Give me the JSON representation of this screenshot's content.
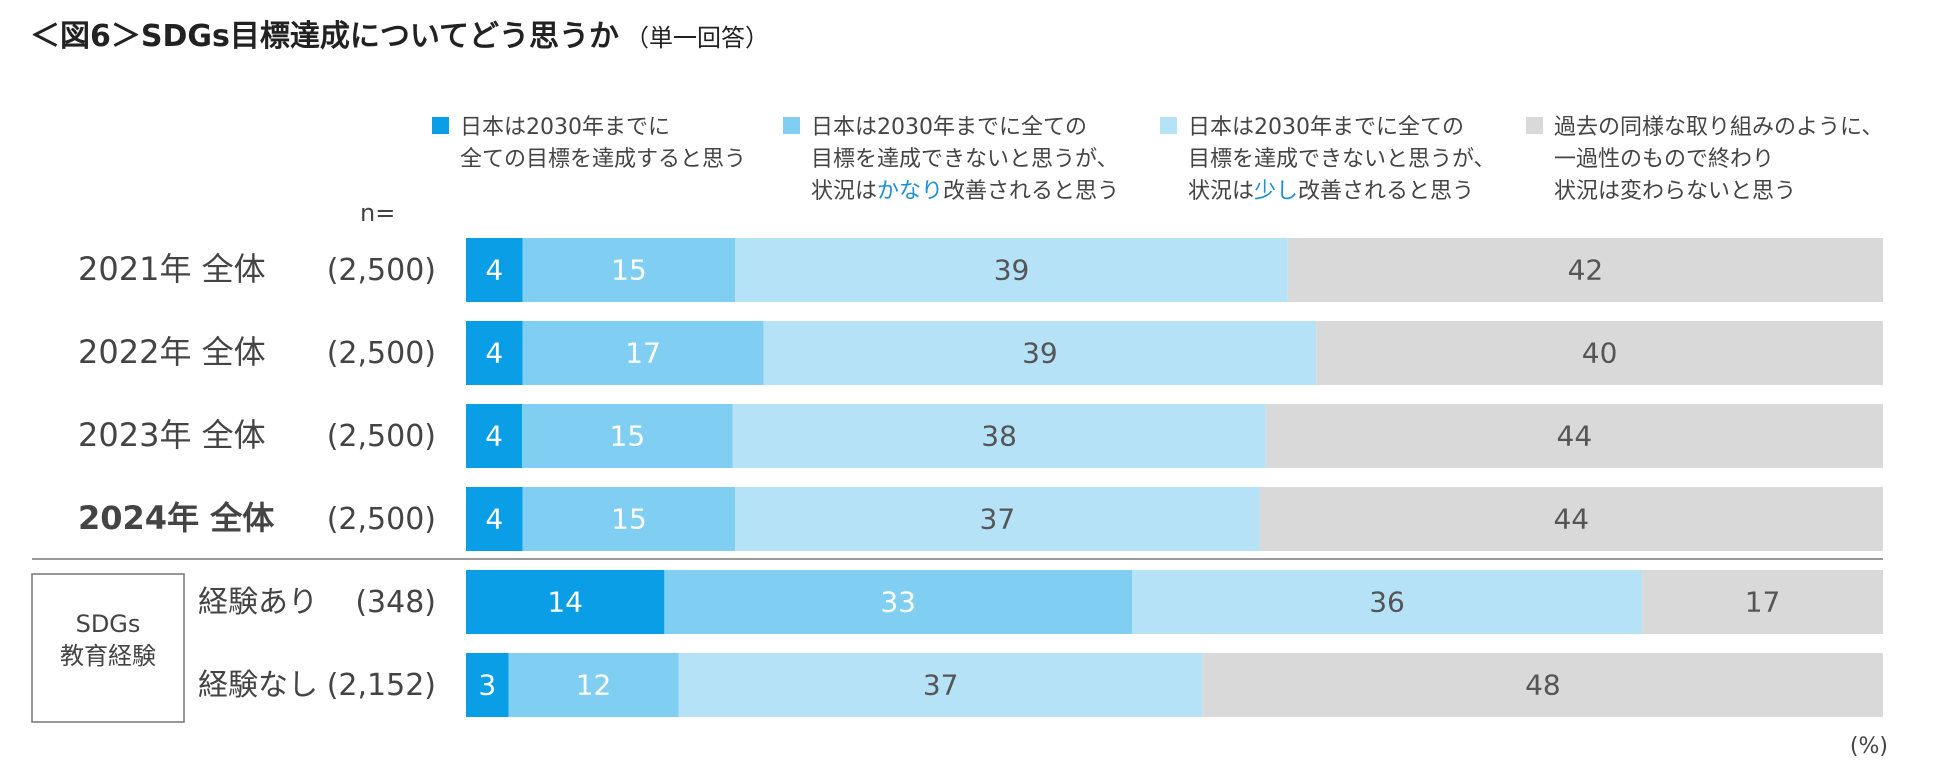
{
  "header": {
    "title": "＜図6＞SDGs目標達成についてどう思うか",
    "subtitle": "（単一回答）"
  },
  "chart_data": {
    "type": "bar",
    "orientation": "horizontal",
    "stacked": true,
    "unit_label": "(%)",
    "n_label": "n=",
    "colors": [
      "#0a9ee6",
      "#80cff3",
      "#b6e2f8",
      "#d9d9d9"
    ],
    "label_colors": [
      "#ffffff",
      "#ffffff",
      "#555555",
      "#555555"
    ],
    "legend": [
      {
        "lines": [
          [
            "日本は2030年までに"
          ],
          [
            "全ての目標を達成すると思う"
          ]
        ]
      },
      {
        "lines": [
          [
            "日本は2030年までに全ての"
          ],
          [
            "目標を達成できないと思うが、"
          ],
          [
            "状況は",
            "かなり",
            "改善されると思う"
          ]
        ]
      },
      {
        "lines": [
          [
            "日本は2030年までに全ての"
          ],
          [
            "目標を達成できないと思うが、"
          ],
          [
            "状況は",
            "少し",
            "改善されると思う"
          ]
        ]
      },
      {
        "lines": [
          [
            "過去の同様な取り組みのように、"
          ],
          [
            "一過性のもので終わり"
          ],
          [
            "状況は変わらないと思う"
          ]
        ]
      }
    ],
    "rows": [
      {
        "label": "2021年 全体",
        "n": "(2,500)",
        "values": [
          4,
          15,
          39,
          42
        ],
        "bold": false
      },
      {
        "label": "2022年 全体",
        "n": "(2,500)",
        "values": [
          4,
          17,
          39,
          40
        ],
        "bold": false
      },
      {
        "label": "2023年 全体",
        "n": "(2,500)",
        "values": [
          4,
          15,
          38,
          44
        ],
        "bold": false
      },
      {
        "label": "2024年 全体",
        "n": "(2,500)",
        "values": [
          4,
          15,
          37,
          44
        ],
        "bold": true
      },
      {
        "label": "経験あり",
        "n": "(348)",
        "values": [
          14,
          33,
          36,
          17
        ],
        "bold": false
      },
      {
        "label": "経験なし",
        "n": "(2,152)",
        "values": [
          3,
          12,
          37,
          48
        ],
        "bold": false
      }
    ],
    "group": {
      "label_lines": [
        "SDGs",
        "教育経験"
      ]
    }
  }
}
